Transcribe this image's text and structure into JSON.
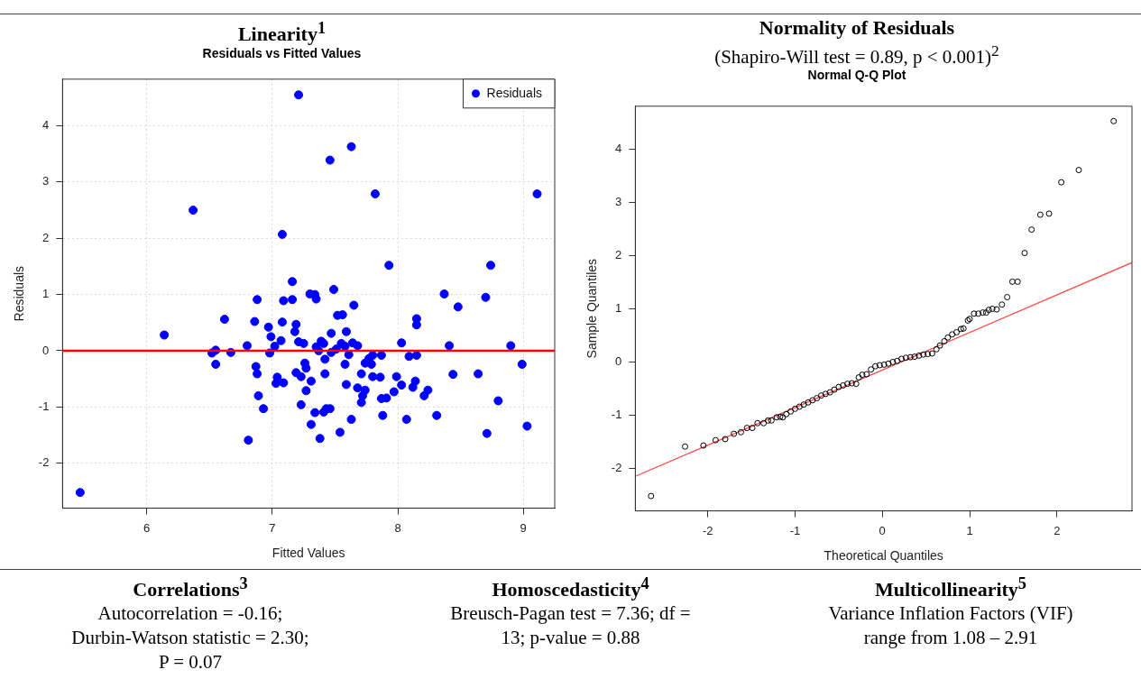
{
  "chart_data": [
    {
      "type": "scatter",
      "title": "Linearity$^{1}$",
      "subtitle": "Residuals vs Fitted Values",
      "xlabel": "Fitted Values",
      "ylabel": "Residuals",
      "x": [
        5.47,
        6.14,
        6.37,
        6.52,
        6.55,
        6.55,
        6.62,
        6.67,
        6.8,
        6.81,
        6.86,
        6.88,
        6.87,
        6.88,
        6.89,
        6.93,
        6.97,
        6.99,
        6.98,
        7.02,
        7.04,
        7.03,
        7.07,
        7.08,
        7.08,
        7.09,
        7.09,
        7.16,
        7.16,
        7.18,
        7.19,
        7.19,
        7.21,
        7.23,
        7.21,
        7.23,
        7.25,
        7.26,
        7.27,
        7.27,
        7.3,
        7.31,
        7.31,
        7.34,
        7.34,
        7.35,
        7.35,
        7.37,
        7.38,
        7.39,
        7.41,
        7.41,
        7.42,
        7.42,
        7.43,
        7.46,
        7.46,
        7.47,
        7.47,
        7.49,
        7.51,
        7.52,
        7.54,
        7.55,
        7.56,
        7.58,
        7.58,
        7.59,
        7.59,
        7.61,
        7.63,
        7.63,
        7.64,
        7.65,
        7.68,
        7.68,
        7.71,
        7.71,
        7.72,
        7.74,
        7.74,
        7.77,
        7.79,
        7.8,
        7.8,
        7.82,
        7.86,
        7.87,
        7.87,
        7.88,
        7.91,
        7.93,
        7.97,
        7.99,
        8.03,
        8.03,
        8.07,
        8.09,
        8.12,
        8.14,
        8.15,
        8.15,
        8.15,
        8.21,
        8.24,
        8.31,
        8.37,
        8.41,
        8.44,
        8.48,
        8.64,
        8.7,
        8.71,
        8.74,
        8.8,
        8.9,
        8.99,
        9.03,
        9.11
      ],
      "series": [
        {
          "name": "Residuals",
          "color": "#0000ff",
          "values": [
            -2.52,
            0.28,
            2.5,
            -0.04,
            0.01,
            -0.24,
            0.56,
            -0.03,
            0.09,
            -1.59,
            0.52,
            0.91,
            -0.28,
            -0.41,
            -0.8,
            -1.03,
            0.42,
            0.25,
            -0.04,
            0.08,
            -0.47,
            -0.58,
            0.18,
            0.51,
            2.07,
            0.89,
            -0.57,
            0.91,
            1.23,
            0.34,
            0.47,
            -0.39,
            0.16,
            -0.46,
            4.55,
            -0.96,
            0.13,
            -0.22,
            -0.31,
            -0.71,
            1.01,
            -0.54,
            -1.31,
            1.0,
            -1.1,
            0.92,
            0.07,
            0.0,
            -1.56,
            0.17,
            0.13,
            -1.09,
            -0.41,
            -0.15,
            -1.03,
            -1.03,
            3.39,
            0.31,
            -0.03,
            1.09,
            0.03,
            0.63,
            -1.45,
            0.13,
            0.64,
            0.08,
            -0.24,
            0.34,
            -0.6,
            -0.07,
            -1.22,
            3.63,
            0.14,
            0.81,
            0.09,
            -0.66,
            -0.41,
            -0.92,
            -0.8,
            -0.7,
            -0.22,
            -0.14,
            -0.24,
            -0.08,
            -0.46,
            2.79,
            -0.47,
            -0.08,
            -0.85,
            -1.15,
            -0.84,
            1.52,
            -0.73,
            -0.46,
            0.14,
            -0.61,
            -1.22,
            -0.1,
            -0.65,
            -0.54,
            0.57,
            0.46,
            -0.08,
            -0.8,
            -0.7,
            -1.15,
            1.01,
            0.09,
            -0.42,
            0.78,
            -0.41,
            0.95,
            -1.47,
            1.52,
            -0.89,
            0.09,
            -0.24,
            -1.34,
            2.79
          ]
        }
      ],
      "xlim": [
        5.33,
        9.25
      ],
      "xticks": [
        6,
        7,
        8,
        9
      ],
      "ylim": [
        -2.8,
        4.83
      ],
      "yticks": [
        -2,
        -1,
        0,
        1,
        2,
        3,
        4
      ],
      "ref_lines": [
        {
          "axis": "y",
          "value": 0,
          "color": "#ff0000"
        }
      ],
      "grid": true,
      "legend": "top right",
      "marker": "circle"
    },
    {
      "type": "scatter",
      "title": "Normality of Residuals",
      "subtitle": "(Shapiro-Will test = 0.89, p < 0.001)$^{2}$",
      "annotations": [
        "Normal Q-Q Plot"
      ],
      "xlabel": "Theoretical Quantiles",
      "ylabel": "Sample Quantiles",
      "series": [
        {
          "color": "#000000",
          "x": [
            -2.65,
            -2.26,
            -2.05,
            -1.91,
            -1.8,
            -1.7,
            -1.62,
            -1.55,
            -1.49,
            -1.43,
            -1.36,
            -1.31,
            -1.27,
            -1.21,
            -1.17,
            -1.14,
            -1.1,
            -1.05,
            -1.0,
            -0.95,
            -0.9,
            -0.85,
            -0.8,
            -0.75,
            -0.7,
            -0.65,
            -0.6,
            -0.55,
            -0.5,
            -0.45,
            -0.4,
            -0.35,
            -0.3,
            -0.27,
            -0.23,
            -0.18,
            -0.13,
            -0.08,
            -0.03,
            0.02,
            0.07,
            0.12,
            0.17,
            0.22,
            0.27,
            0.32,
            0.37,
            0.42,
            0.47,
            0.52,
            0.57,
            0.62,
            0.66,
            0.71,
            0.75,
            0.8,
            0.85,
            0.9,
            0.93,
            0.98,
            1.0,
            1.05,
            1.1,
            1.15,
            1.19,
            1.22,
            1.26,
            1.31,
            1.37,
            1.43,
            1.49,
            1.55,
            1.63,
            1.71,
            1.81,
            1.91,
            2.05,
            2.25,
            2.65
          ],
          "values": [
            -2.52,
            -1.59,
            -1.57,
            -1.47,
            -1.45,
            -1.35,
            -1.32,
            -1.24,
            -1.24,
            -1.15,
            -1.15,
            -1.1,
            -1.1,
            -1.04,
            -1.03,
            -1.04,
            -0.98,
            -0.93,
            -0.88,
            -0.84,
            -0.8,
            -0.76,
            -0.72,
            -0.68,
            -0.63,
            -0.6,
            -0.57,
            -0.52,
            -0.47,
            -0.44,
            -0.41,
            -0.4,
            -0.41,
            -0.29,
            -0.24,
            -0.23,
            -0.14,
            -0.08,
            -0.06,
            -0.05,
            -0.03,
            0.0,
            0.02,
            0.06,
            0.08,
            0.09,
            0.1,
            0.12,
            0.14,
            0.15,
            0.16,
            0.24,
            0.31,
            0.39,
            0.46,
            0.52,
            0.56,
            0.62,
            0.63,
            0.78,
            0.81,
            0.91,
            0.91,
            0.93,
            0.93,
            0.98,
            1.0,
            0.99,
            1.08,
            1.22,
            1.51,
            1.51,
            2.05,
            2.49,
            2.77,
            2.79,
            3.38,
            3.61,
            4.53
          ]
        },
        {
          "type": "line",
          "color": "#ff4d4d",
          "marker": "none",
          "x": [
            -2.83,
            2.86
          ],
          "values": [
            -2.15,
            1.87
          ]
        }
      ],
      "xlim": [
        -2.83,
        2.86
      ],
      "xticks": [
        -2,
        -1,
        0,
        1,
        2
      ],
      "ylim": [
        -2.8,
        4.81
      ],
      "yticks": [
        -2,
        -1,
        0,
        1,
        2,
        3,
        4
      ],
      "marker": "circle"
    },
    {
      "type": "other",
      "title": "Correlations$^{3}$",
      "annotations": [
        "Autocorrelation = -0.16;",
        "Durbin-Watson statistic = 2.30;",
        "P = 0.07"
      ]
    },
    {
      "type": "other",
      "title": "Homoscedasticity$^{4}$",
      "annotations": [
        "Breusch-Pagan test = 7.36; df =",
        "13; p-value = 0.88"
      ]
    },
    {
      "type": "other",
      "title": "Multicollinearity$^{5}$",
      "annotations": [
        "Variance Inflation Factors (VIF)",
        "range from 1.08 – 2.91"
      ]
    }
  ]
}
